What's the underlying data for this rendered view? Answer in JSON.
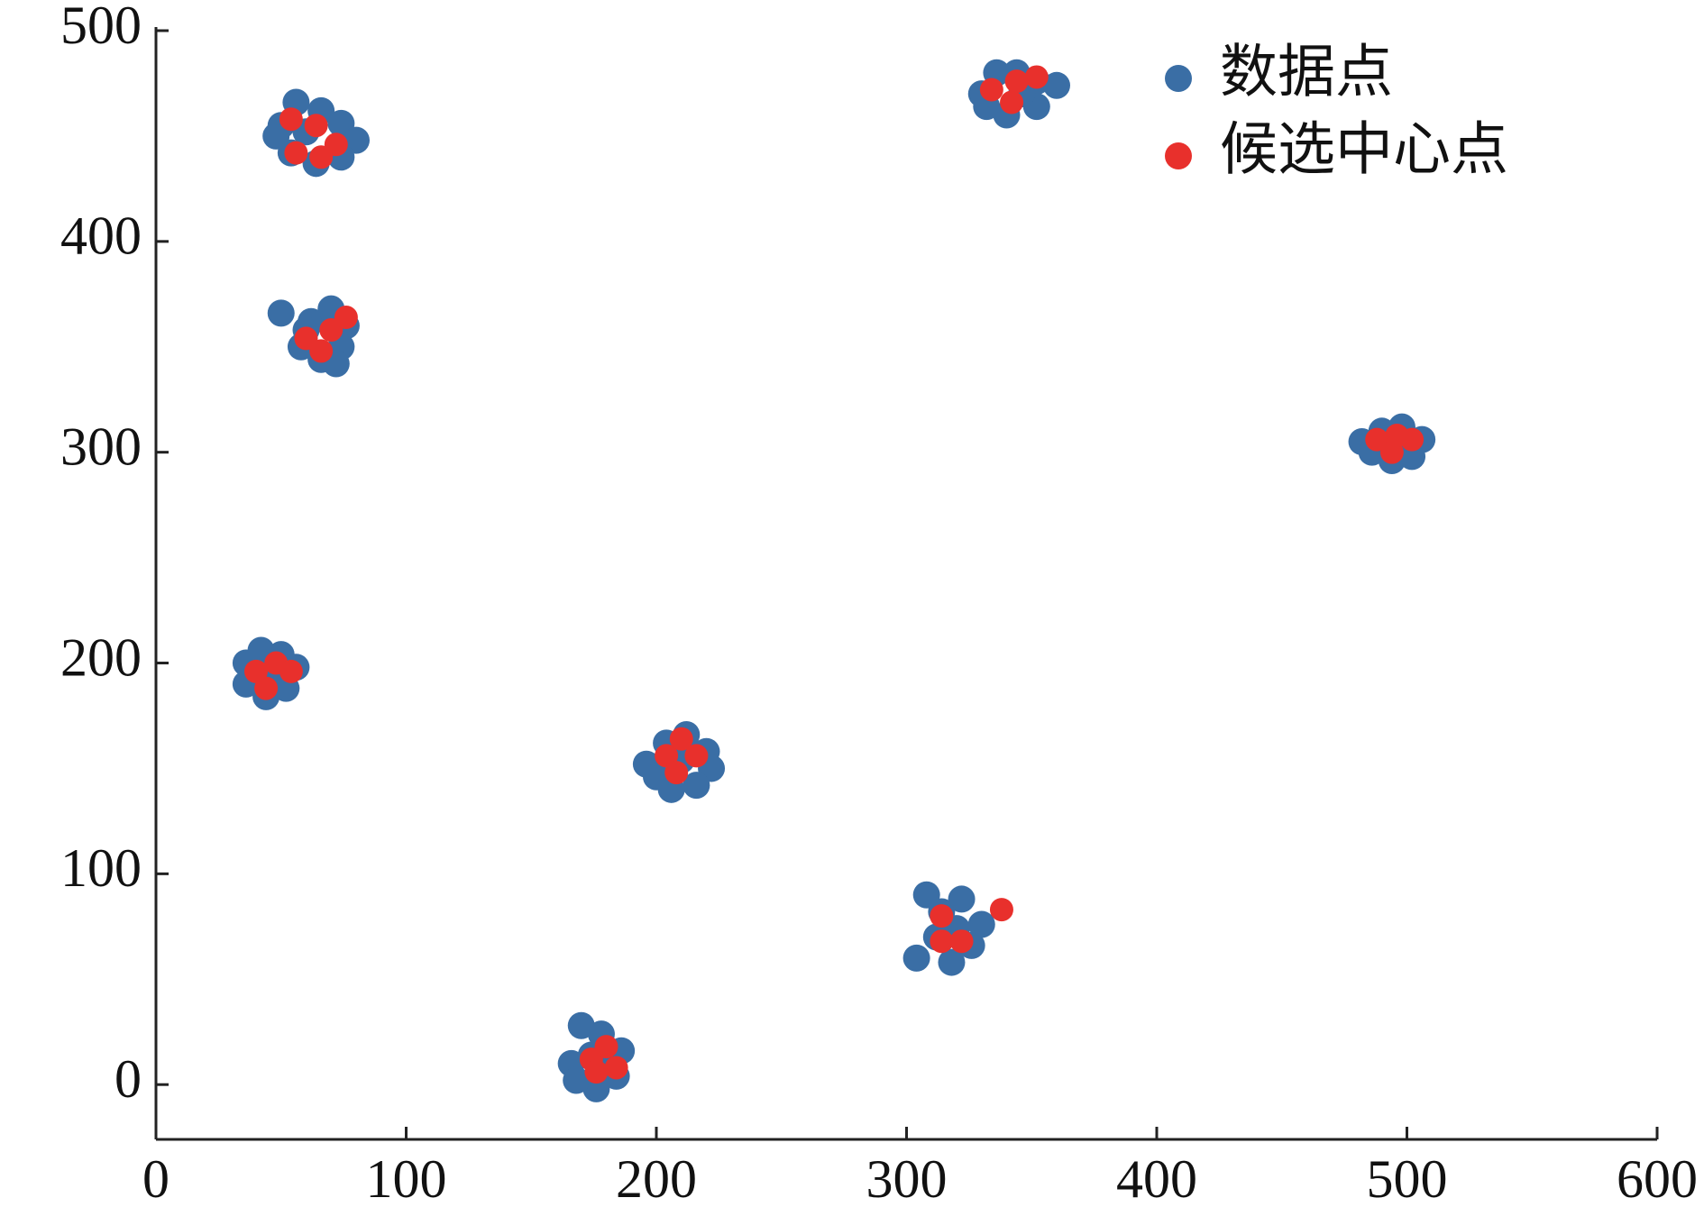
{
  "chart_data": {
    "type": "scatter",
    "xlim": [
      0,
      600
    ],
    "xticks": [
      0,
      100,
      200,
      300,
      400,
      500,
      600
    ],
    "ylim": [
      -26,
      500
    ],
    "yticks": [
      0,
      100,
      200,
      300,
      400,
      500
    ],
    "legend": "upper right",
    "series": [
      {
        "name": "数据点",
        "color": "#3a6ea5",
        "x": [
          50,
          56,
          66,
          74,
          80,
          74,
          64,
          54,
          48,
          60,
          50,
          62,
          70,
          76,
          74,
          66,
          58,
          60,
          72,
          36,
          42,
          50,
          56,
          52,
          44,
          36,
          46,
          196,
          204,
          212,
          220,
          222,
          216,
          206,
          200,
          210,
          166,
          170,
          178,
          186,
          184,
          176,
          168,
          174,
          180,
          304,
          308,
          314,
          322,
          330,
          326,
          318,
          312,
          320,
          330,
          336,
          344,
          352,
          360,
          352,
          340,
          332,
          346,
          482,
          490,
          498,
          506,
          502,
          494,
          486,
          496
        ],
        "values": [
          455,
          466,
          462,
          456,
          448,
          440,
          437,
          442,
          450,
          452,
          366,
          362,
          368,
          360,
          350,
          344,
          350,
          358,
          342,
          200,
          206,
          204,
          198,
          188,
          184,
          190,
          196,
          152,
          162,
          166,
          158,
          150,
          142,
          140,
          146,
          154,
          10,
          28,
          24,
          16,
          4,
          -2,
          2,
          14,
          8,
          60,
          90,
          82,
          88,
          76,
          66,
          58,
          70,
          74,
          470,
          480,
          480,
          476,
          474,
          464,
          460,
          464,
          470,
          305,
          310,
          312,
          306,
          298,
          296,
          300,
          304
        ]
      },
      {
        "name": "候选中心点",
        "color": "#e8302c",
        "x": [
          54,
          64,
          72,
          66,
          56,
          60,
          70,
          76,
          66,
          40,
          48,
          54,
          44,
          204,
          210,
          216,
          208,
          174,
          180,
          184,
          176,
          314,
          314,
          322,
          338,
          334,
          344,
          352,
          342,
          488,
          494,
          502,
          496
        ],
        "values": [
          458,
          455,
          446,
          440,
          442,
          354,
          358,
          364,
          348,
          196,
          200,
          196,
          188,
          156,
          164,
          156,
          148,
          12,
          18,
          8,
          6,
          80,
          68,
          68,
          83,
          472,
          476,
          478,
          466,
          306,
          300,
          306,
          308
        ]
      }
    ]
  }
}
